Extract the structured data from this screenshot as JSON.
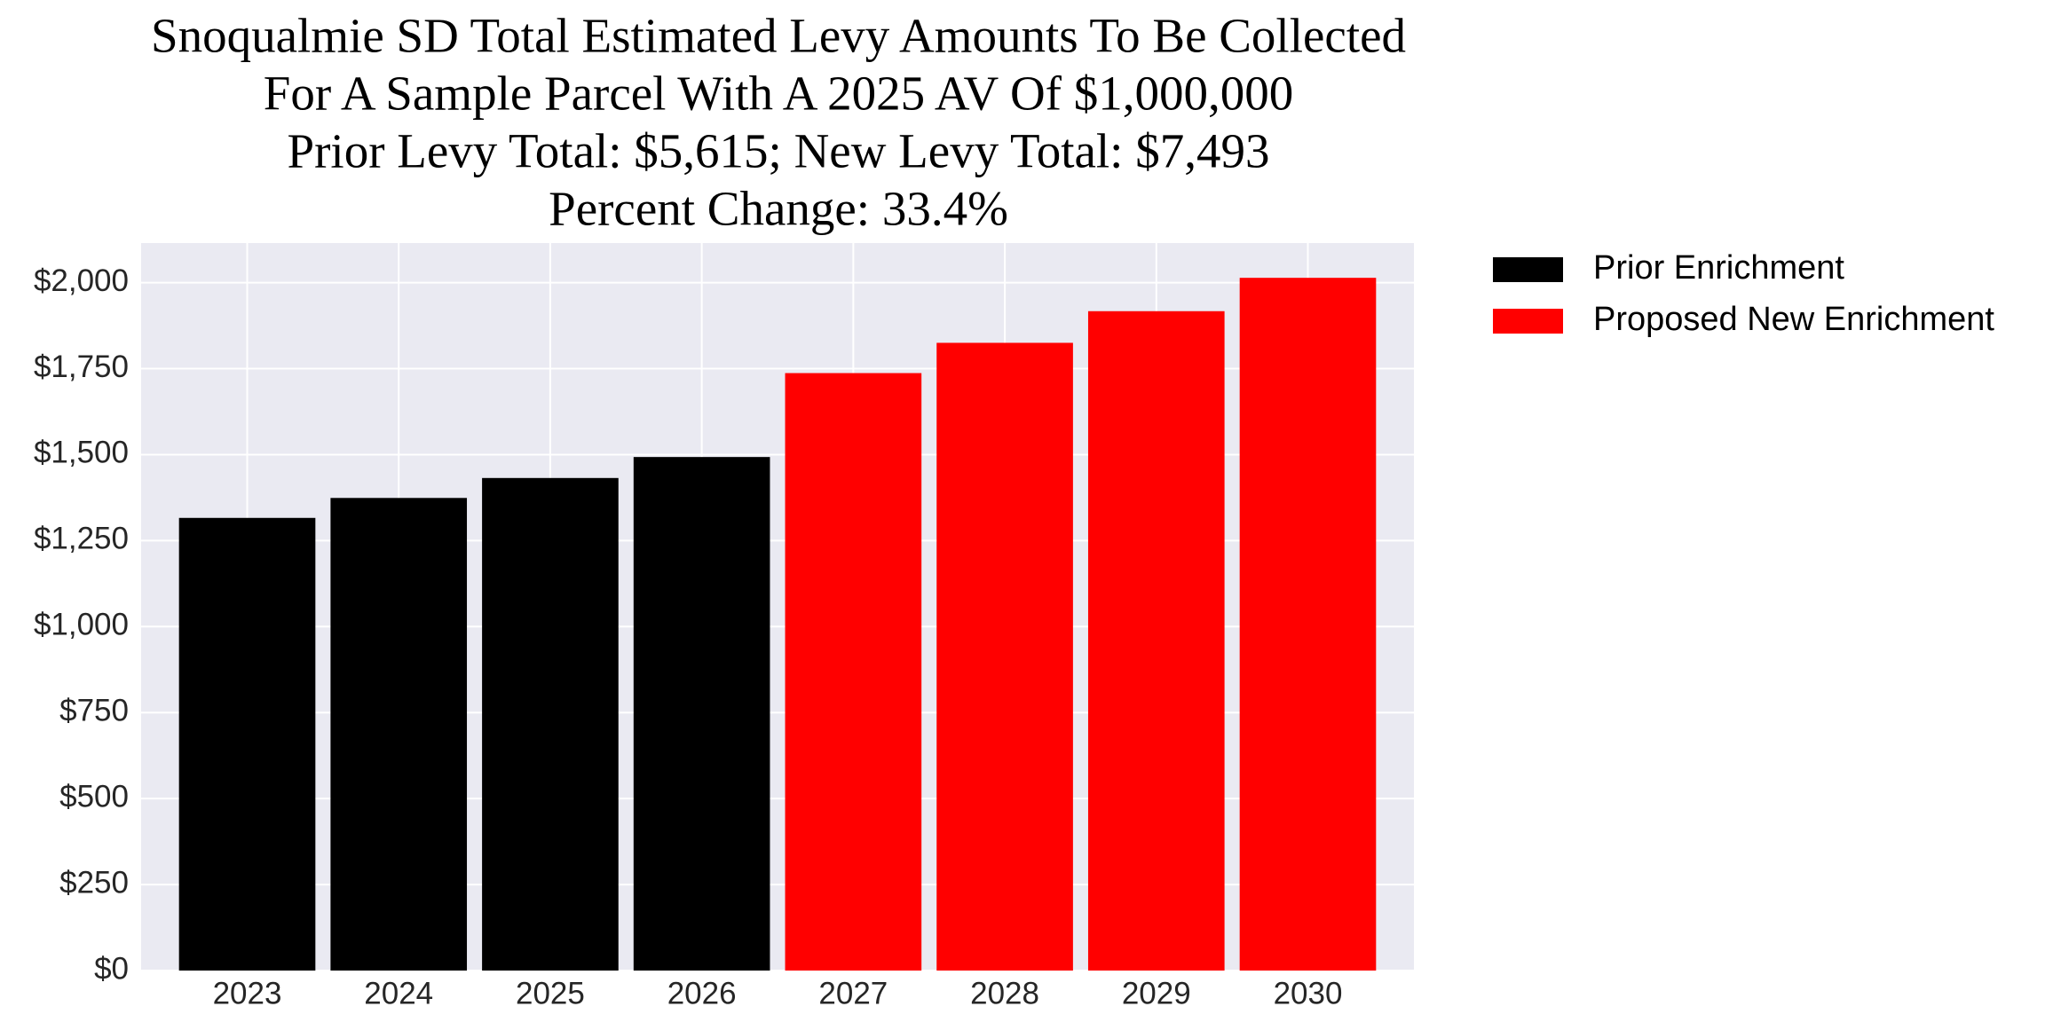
{
  "chart_data": {
    "type": "bar",
    "title": [
      "Snoqualmie SD Total Estimated Levy Amounts To Be Collected",
      "For A Sample Parcel With A 2025 AV Of $1,000,000",
      "Prior Levy Total:  $5,615; New Levy Total: $7,493",
      "Percent Change: 33.4%"
    ],
    "categories": [
      "2023",
      "2024",
      "2025",
      "2026",
      "2027",
      "2028",
      "2029",
      "2030"
    ],
    "series": [
      {
        "name": "Prior Enrichment",
        "color": "#000000",
        "values": [
          1316,
          1374,
          1432,
          1493,
          null,
          null,
          null,
          null
        ]
      },
      {
        "name": "Proposed New Enrichment",
        "color": "#ff0000",
        "values": [
          null,
          null,
          null,
          null,
          1737,
          1825,
          1917,
          2014
        ]
      }
    ],
    "ylim": [
      0,
      2115
    ],
    "yticks": [
      {
        "value": 0,
        "label": "$0"
      },
      {
        "value": 250,
        "label": "$250"
      },
      {
        "value": 500,
        "label": "$500"
      },
      {
        "value": 750,
        "label": "$750"
      },
      {
        "value": 1000,
        "label": "$1,000"
      },
      {
        "value": 1250,
        "label": "$1,250"
      },
      {
        "value": 1500,
        "label": "$1,500"
      },
      {
        "value": 1750,
        "label": "$1,750"
      },
      {
        "value": 2000,
        "label": "$2,000"
      }
    ],
    "grid": true
  }
}
